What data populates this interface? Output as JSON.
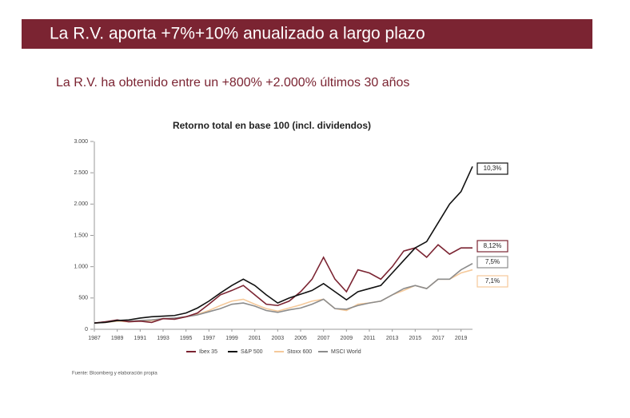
{
  "slide": {
    "heading": "La R.V. aporta +7%+10% anualizado a largo plazo",
    "subheading": "La R.V. ha obtenido entre un +800% +2.000% últimos 30 años",
    "source": "Fuente: Bloomberg y elaboración propia"
  },
  "chart_data": {
    "type": "line",
    "title": "Retorno total en base 100 (incl. dividendos)",
    "x": [
      1987,
      1988,
      1989,
      1990,
      1991,
      1992,
      1993,
      1994,
      1995,
      1996,
      1997,
      1998,
      1999,
      2000,
      2001,
      2002,
      2003,
      2004,
      2005,
      2006,
      2007,
      2008,
      2009,
      2010,
      2011,
      2012,
      2013,
      2014,
      2015,
      2016,
      2017,
      2018,
      2019,
      2020
    ],
    "xlim": [
      1987,
      2020
    ],
    "xticks": [
      1987,
      1989,
      1991,
      1993,
      1995,
      1997,
      1999,
      2001,
      2003,
      2005,
      2007,
      2009,
      2011,
      2013,
      2015,
      2017,
      2019
    ],
    "ylim": [
      0,
      3000
    ],
    "yticks": [
      0,
      500,
      {
        "value": 1000,
        "label": "1.000"
      },
      {
        "value": 1500,
        "label": "1.500"
      },
      {
        "value": 2000,
        "label": "2.000"
      },
      {
        "value": 2500,
        "label": "2.500"
      },
      {
        "value": 3000,
        "label": "3.000"
      }
    ],
    "series": [
      {
        "name": "Ibex 35",
        "color": "#7b2432",
        "end_label": "8,12%",
        "values": [
          100,
          120,
          150,
          120,
          130,
          110,
          170,
          160,
          200,
          260,
          400,
          550,
          620,
          700,
          550,
          400,
          380,
          450,
          600,
          800,
          1150,
          800,
          600,
          950,
          900,
          800,
          1000,
          1250,
          1300,
          1150,
          1350,
          1200,
          1300,
          1300
        ]
      },
      {
        "name": "S&P 500",
        "color": "#111111",
        "end_label": "10,3%",
        "values": [
          100,
          110,
          140,
          150,
          180,
          200,
          210,
          220,
          260,
          340,
          450,
          580,
          700,
          800,
          700,
          550,
          420,
          500,
          560,
          620,
          730,
          600,
          470,
          600,
          650,
          700,
          900,
          1100,
          1300,
          1400,
          1700,
          2000,
          2200,
          2600
        ]
      },
      {
        "name": "Stoxx 600",
        "color": "#f5c99a",
        "end_label": "7,1%",
        "values": [
          100,
          110,
          130,
          120,
          130,
          140,
          170,
          170,
          200,
          240,
          300,
          380,
          450,
          480,
          400,
          330,
          290,
          340,
          390,
          450,
          480,
          330,
          300,
          400,
          420,
          450,
          550,
          620,
          700,
          650,
          800,
          800,
          900,
          950
        ]
      },
      {
        "name": "MSCI World",
        "color": "#8c8c8c",
        "end_label": "7,5%",
        "values": [
          100,
          120,
          140,
          130,
          140,
          150,
          170,
          180,
          200,
          230,
          280,
          330,
          400,
          420,
          370,
          300,
          270,
          310,
          340,
          400,
          480,
          330,
          320,
          380,
          420,
          450,
          550,
          650,
          700,
          650,
          800,
          800,
          950,
          1050
        ]
      }
    ]
  }
}
